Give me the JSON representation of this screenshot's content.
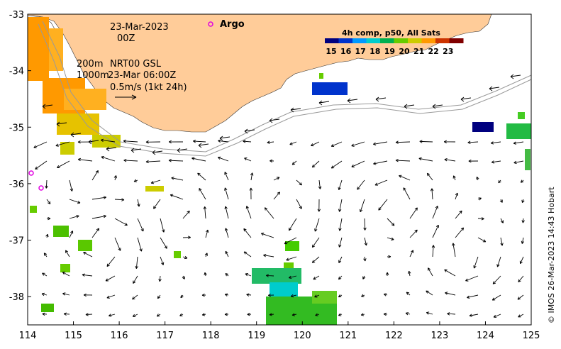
{
  "map": {
    "date_line1": "23-Mar-2023",
    "date_line2": "00Z",
    "contour_label_200": "200m",
    "contour_label_1000": "1000m",
    "product_label": "NRT00 GSL",
    "product_time": "23-Mar 06:00Z",
    "scale_label": "0.5m/s (1kt 24h)",
    "argo_label": "Argo",
    "colorbar_title": "4h comp, p50, All Sats",
    "colorbar_ticks": [
      "15",
      "16",
      "17",
      "18",
      "19",
      "20",
      "21",
      "22",
      "23"
    ],
    "colorbar_colors": [
      "#00007f",
      "#0033cc",
      "#0099ff",
      "#00cccc",
      "#00b050",
      "#66cc00",
      "#cccc00",
      "#ff9900",
      "#cc3300",
      "#800000"
    ],
    "land_color": "#ffcc99",
    "credit": "© IMOS 26-Mar-2023 14:43 Hobart",
    "x_axis_ticks": [
      "114",
      "115",
      "116",
      "117",
      "118",
      "119",
      "120",
      "121",
      "122",
      "123",
      "124",
      "125"
    ],
    "y_axis_ticks": [
      "-33",
      "-34",
      "-35",
      "-36",
      "-37",
      "-38"
    ],
    "lon_range": [
      114,
      125
    ],
    "lat_range": [
      -38.5,
      -33
    ]
  }
}
